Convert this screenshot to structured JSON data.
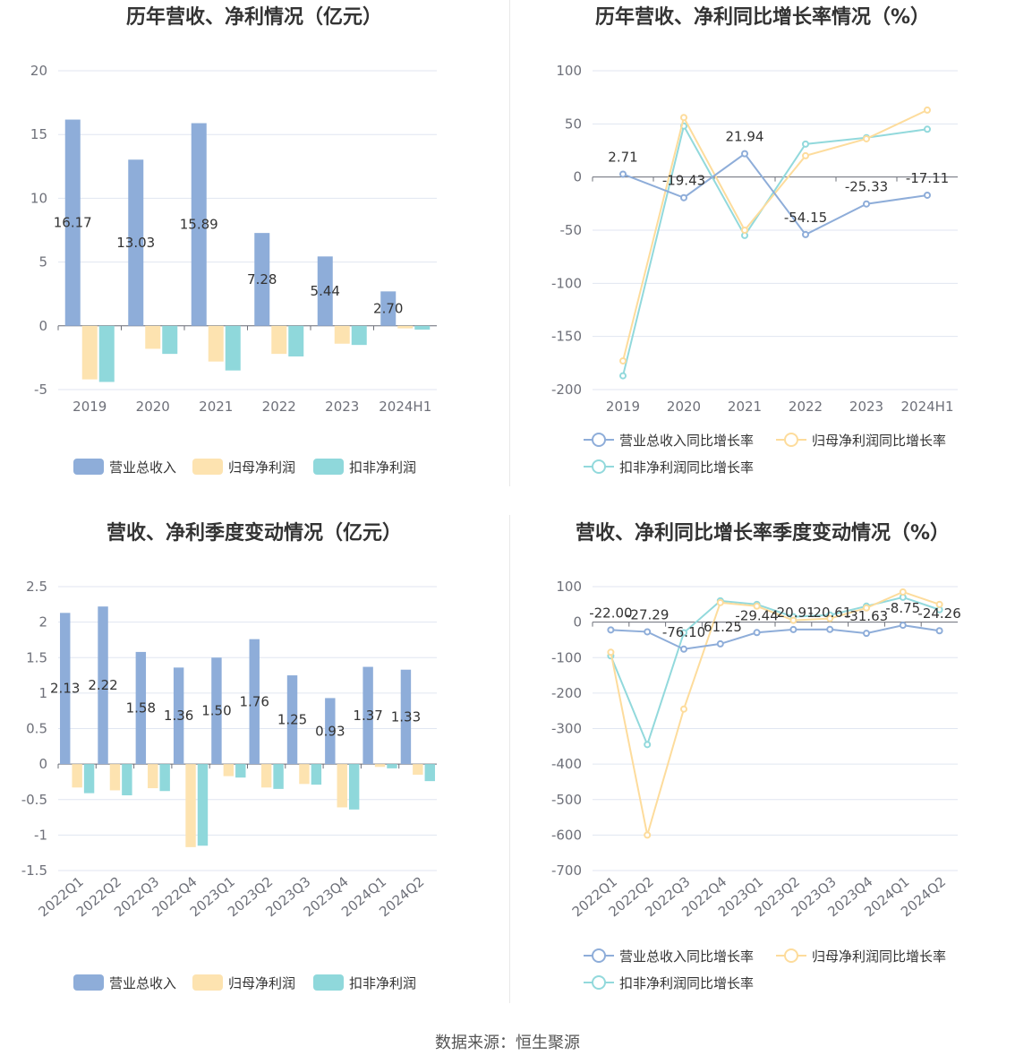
{
  "colors": {
    "revenue": "#8eadd9",
    "net": "#fde3b0",
    "deducted": "#8fd8db",
    "rev_line": "#8eadd9",
    "net_line": "#fddc9c",
    "ded_line": "#92d9dc"
  },
  "source": "数据来源：恒生聚源",
  "chart_data": [
    {
      "type": "bar",
      "title": "历年营收、净利情况（亿元）",
      "categories": [
        "2019",
        "2020",
        "2021",
        "2022",
        "2023",
        "2024H1"
      ],
      "ylim": [
        -5,
        20
      ],
      "yticks": [
        -5,
        0,
        5,
        10,
        15,
        20
      ],
      "series": [
        {
          "name": "营业总收入",
          "values": [
            16.17,
            13.03,
            15.89,
            7.28,
            5.44,
            2.7
          ],
          "labels": [
            "16.17",
            "13.03",
            "15.89",
            "7.28",
            "5.44",
            "2.70"
          ]
        },
        {
          "name": "归母净利润",
          "values": [
            -4.2,
            -1.8,
            -2.8,
            -2.2,
            -1.4,
            -0.2
          ]
        },
        {
          "name": "扣非净利润",
          "values": [
            -4.4,
            -2.2,
            -3.5,
            -2.4,
            -1.5,
            -0.3
          ]
        }
      ],
      "legend": "bottom"
    },
    {
      "type": "line",
      "title": "历年营收、净利同比增长率情况（%）",
      "categories": [
        "2019",
        "2020",
        "2021",
        "2022",
        "2023",
        "2024H1"
      ],
      "ylim": [
        -200,
        100
      ],
      "yticks": [
        -200,
        -150,
        -100,
        -50,
        0,
        50,
        100
      ],
      "series": [
        {
          "name": "营业总收入同比增长率",
          "values": [
            2.71,
            -19.43,
            21.94,
            -54.15,
            -25.33,
            -17.11
          ],
          "labels": [
            "2.71",
            "-19.43",
            "21.94",
            "-54.15",
            "-25.33",
            "-17.11"
          ]
        },
        {
          "name": "归母净利润同比增长率",
          "values": [
            -173,
            56,
            -50,
            20,
            36,
            63
          ]
        },
        {
          "name": "扣非净利润同比增长率",
          "values": [
            -187,
            48,
            -55,
            31,
            37,
            45
          ]
        }
      ],
      "legend": "bottom"
    },
    {
      "type": "bar",
      "title": "营收、净利季度变动情况（亿元）",
      "categories": [
        "2022Q1",
        "2022Q2",
        "2022Q3",
        "2022Q4",
        "2023Q1",
        "2023Q2",
        "2023Q3",
        "2023Q4",
        "2024Q1",
        "2024Q2"
      ],
      "ylim": [
        -1.5,
        2.5
      ],
      "yticks": [
        -1.5,
        -1,
        -0.5,
        0,
        0.5,
        1,
        1.5,
        2,
        2.5
      ],
      "series": [
        {
          "name": "营业总收入",
          "values": [
            2.13,
            2.22,
            1.58,
            1.36,
            1.5,
            1.76,
            1.25,
            0.93,
            1.37,
            1.33
          ],
          "labels": [
            "2.13",
            "2.22",
            "1.58",
            "1.36",
            "1.50",
            "1.76",
            "1.25",
            "0.93",
            "1.37",
            "1.33"
          ]
        },
        {
          "name": "归母净利润",
          "values": [
            -0.33,
            -0.37,
            -0.34,
            -1.17,
            -0.17,
            -0.33,
            -0.28,
            -0.61,
            -0.04,
            -0.15
          ]
        },
        {
          "name": "扣非净利润",
          "values": [
            -0.41,
            -0.44,
            -0.38,
            -1.15,
            -0.19,
            -0.35,
            -0.29,
            -0.64,
            -0.06,
            -0.24
          ]
        }
      ],
      "legend": "bottom"
    },
    {
      "type": "line",
      "title": "营收、净利同比增长率季度变动情况（%）",
      "categories": [
        "2022Q1",
        "2022Q2",
        "2022Q3",
        "2022Q4",
        "2023Q1",
        "2023Q2",
        "2023Q3",
        "2023Q4",
        "2024Q1",
        "2024Q2"
      ],
      "ylim": [
        -700,
        100
      ],
      "yticks": [
        -700,
        -600,
        -500,
        -400,
        -300,
        -200,
        -100,
        0,
        100
      ],
      "series": [
        {
          "name": "营业总收入同比增长率",
          "values": [
            -22.0,
            -27.29,
            -76.1,
            -61.25,
            -29.44,
            -20.91,
            -20.61,
            -31.63,
            -8.75,
            -24.26
          ],
          "labels": [
            "-22.00",
            "-27.29",
            "-76.10",
            "-61.25",
            "-29.44",
            "-20.91",
            "-20.61",
            "-31.63",
            "-8.75",
            "-24.26"
          ]
        },
        {
          "name": "归母净利润同比增长率",
          "values": [
            -85,
            -600,
            -245,
            55,
            45,
            5,
            10,
            40,
            85,
            50
          ]
        },
        {
          "name": "扣非净利润同比增长率",
          "values": [
            -95,
            -345,
            -30,
            60,
            50,
            15,
            20,
            45,
            70,
            35
          ]
        }
      ],
      "legend": "bottom"
    }
  ]
}
